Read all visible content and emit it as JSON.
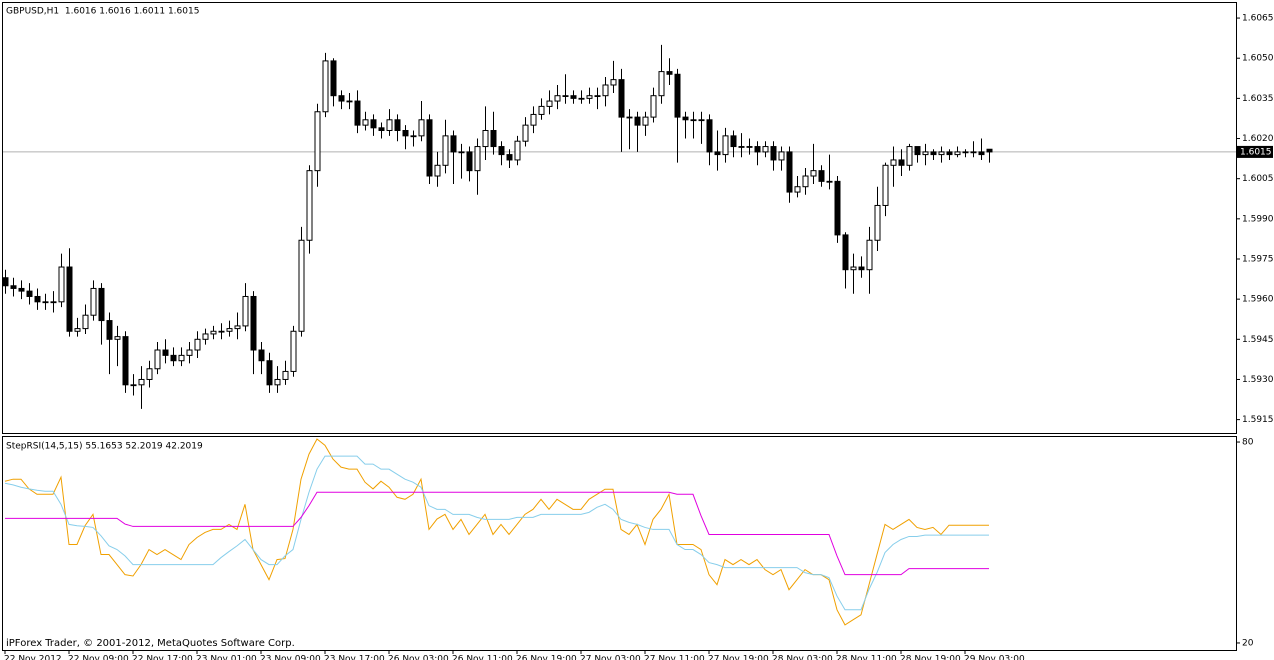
{
  "chart_data": [
    {
      "type": "candlestick",
      "title": "GBPUSD,H1  1.6016 1.6016 1.6011 1.6015",
      "categories": [
        "22 Nov 2012",
        null,
        null,
        null,
        null,
        null,
        null,
        null,
        "22 Nov 09:00",
        null,
        null,
        null,
        null,
        null,
        null,
        null,
        "22 Nov 17:00",
        null,
        null,
        null,
        null,
        null,
        null,
        null,
        "23 Nov 01:00",
        null,
        null,
        null,
        null,
        null,
        null,
        null,
        "23 Nov 09:00",
        null,
        null,
        null,
        null,
        null,
        null,
        null,
        "23 Nov 17:00",
        null,
        null,
        null,
        null,
        null,
        null,
        null,
        "26 Nov 03:00",
        null,
        null,
        null,
        null,
        null,
        null,
        null,
        "26 Nov 11:00",
        null,
        null,
        null,
        null,
        null,
        null,
        null,
        "26 Nov 19:00",
        null,
        null,
        null,
        null,
        null,
        null,
        null,
        "27 Nov 03:00",
        null,
        null,
        null,
        null,
        null,
        null,
        null,
        "27 Nov 11:00",
        null,
        null,
        null,
        null,
        null,
        null,
        null,
        "27 Nov 19:00",
        null,
        null,
        null,
        null,
        null,
        null,
        null,
        "28 Nov 03:00",
        null,
        null,
        null,
        null,
        null,
        null,
        null,
        "28 Nov 11:00",
        null,
        null,
        null,
        null,
        null,
        null,
        null,
        "28 Nov 19:00",
        null,
        null,
        null,
        null,
        null,
        null,
        null,
        "29 Nov 03:00",
        null,
        null,
        null
      ],
      "open": [
        1.5968,
        1.5965,
        1.5964,
        1.5963,
        1.5961,
        1.5959,
        1.5959,
        1.5959,
        1.5972,
        1.5948,
        1.5949,
        1.5954,
        1.5964,
        1.5952,
        1.5945,
        1.5946,
        1.5928,
        1.5928,
        1.593,
        1.5934,
        1.5941,
        1.5939,
        1.5937,
        1.5939,
        1.5941,
        1.5945,
        1.5947,
        1.5948,
        1.5948,
        1.5949,
        1.595,
        1.5961,
        1.5941,
        1.5937,
        1.5928,
        1.593,
        1.5933,
        1.5948,
        1.5982,
        1.6008,
        1.603,
        1.6049,
        1.6036,
        1.6034,
        1.6034,
        1.6025,
        1.6027,
        1.6024,
        1.6023,
        1.6027,
        1.6023,
        1.6021,
        1.6021,
        1.6027,
        1.6006,
        1.601,
        1.6021,
        1.6015,
        1.6015,
        1.6008,
        1.6017,
        1.6023,
        1.6017,
        1.6014,
        1.6012,
        1.6019,
        1.6025,
        1.6029,
        1.6032,
        1.6034,
        1.6036,
        1.6036,
        1.6035,
        1.6035,
        1.6036,
        1.6036,
        1.604,
        1.6042,
        1.6028,
        1.6028,
        1.6025,
        1.6028,
        1.6036,
        1.6045,
        1.6044,
        1.6028,
        1.6027,
        1.6027,
        1.6027,
        1.6015,
        1.6014,
        1.6021,
        1.6017,
        1.6017,
        1.6017,
        1.6015,
        1.6017,
        1.6012,
        1.6015,
        1.6,
        1.6002,
        1.6006,
        1.6008,
        1.6004,
        1.6004,
        1.5984,
        1.5971,
        1.5972,
        1.5971,
        1.5982,
        1.5995,
        1.601,
        1.6012,
        1.601,
        1.6017,
        1.6014,
        1.6015,
        1.6014,
        1.6015,
        1.6014,
        1.6015,
        1.6015,
        1.6015,
        1.6016
      ],
      "high": [
        1.5971,
        1.5968,
        1.5967,
        1.5966,
        1.5964,
        1.5962,
        1.5963,
        1.5977,
        1.5979,
        1.5953,
        1.5958,
        1.5967,
        1.5966,
        1.5955,
        1.595,
        1.5948,
        1.5932,
        1.5935,
        1.5937,
        1.5944,
        1.5945,
        1.5942,
        1.5942,
        1.5944,
        1.5948,
        1.5949,
        1.595,
        1.5951,
        1.5952,
        1.5955,
        1.5966,
        1.5963,
        1.5944,
        1.594,
        1.5935,
        1.5937,
        1.595,
        1.5987,
        1.601,
        1.6033,
        1.6052,
        1.605,
        1.6038,
        1.6037,
        1.6038,
        1.603,
        1.6029,
        1.6026,
        1.6031,
        1.6029,
        1.6025,
        1.6023,
        1.6034,
        1.6029,
        1.6015,
        1.6027,
        1.6023,
        1.6018,
        1.6017,
        1.602,
        1.6032,
        1.603,
        1.6019,
        1.6016,
        1.6021,
        1.6028,
        1.6032,
        1.6035,
        1.6038,
        1.604,
        1.6044,
        1.6038,
        1.6038,
        1.6039,
        1.6039,
        1.6043,
        1.6049,
        1.6046,
        1.6031,
        1.603,
        1.603,
        1.6039,
        1.6055,
        1.605,
        1.6046,
        1.603,
        1.603,
        1.603,
        1.6029,
        1.6023,
        1.6024,
        1.6023,
        1.6022,
        1.602,
        1.6019,
        1.6019,
        1.6019,
        1.6017,
        1.6017,
        1.6006,
        1.6009,
        1.6018,
        1.601,
        1.6014,
        1.6006,
        1.5985,
        1.5977,
        1.5976,
        1.5987,
        1.6002,
        1.6011,
        1.6017,
        1.6016,
        1.6018,
        1.6017,
        1.6018,
        1.6016,
        1.6017,
        1.6016,
        1.6017,
        1.6016,
        1.6019,
        1.602,
        1.6016
      ],
      "low": [
        1.5962,
        1.5961,
        1.596,
        1.5958,
        1.5956,
        1.5956,
        1.5955,
        1.5957,
        1.5946,
        1.5946,
        1.5947,
        1.5952,
        1.5943,
        1.5932,
        1.5935,
        1.5925,
        1.5924,
        1.5919,
        1.5927,
        1.5932,
        1.5936,
        1.5935,
        1.5935,
        1.5936,
        1.5938,
        1.5943,
        1.5945,
        1.5945,
        1.5946,
        1.5945,
        1.5948,
        1.5932,
        1.5932,
        1.5925,
        1.5925,
        1.5928,
        1.5931,
        1.5946,
        1.5977,
        1.6002,
        1.6028,
        1.6032,
        1.6031,
        1.6031,
        1.6022,
        1.6023,
        1.6021,
        1.602,
        1.6021,
        1.6019,
        1.6016,
        1.6017,
        1.6019,
        1.6003,
        1.6002,
        1.6007,
        1.6003,
        1.6005,
        1.6004,
        1.5999,
        1.6012,
        1.6014,
        1.601,
        1.6009,
        1.601,
        1.6017,
        1.6022,
        1.6027,
        1.6029,
        1.6031,
        1.6033,
        1.6033,
        1.6033,
        1.6033,
        1.6031,
        1.6032,
        1.6037,
        1.6015,
        1.6016,
        1.6015,
        1.6021,
        1.6026,
        1.6033,
        1.604,
        1.6011,
        1.602,
        1.602,
        1.6018,
        1.601,
        1.6008,
        1.6011,
        1.6013,
        1.6013,
        1.6014,
        1.601,
        1.6013,
        1.6008,
        1.6008,
        1.5996,
        1.5998,
        1.5999,
        1.6003,
        1.6002,
        1.6001,
        1.5981,
        1.5964,
        1.5962,
        1.5968,
        1.5962,
        1.5978,
        1.5991,
        1.6002,
        1.6006,
        1.6008,
        1.6011,
        1.601,
        1.6012,
        1.6011,
        1.6012,
        1.6013,
        1.6013,
        1.6013,
        1.6012,
        1.6011
      ],
      "close": [
        1.5965,
        1.5964,
        1.5963,
        1.5961,
        1.5959,
        1.5959,
        1.5959,
        1.5972,
        1.5948,
        1.5949,
        1.5954,
        1.5964,
        1.5952,
        1.5945,
        1.5946,
        1.5928,
        1.5928,
        1.593,
        1.5934,
        1.5941,
        1.5939,
        1.5937,
        1.5939,
        1.5941,
        1.5945,
        1.5947,
        1.5948,
        1.5948,
        1.5949,
        1.595,
        1.5961,
        1.5941,
        1.5937,
        1.5928,
        1.593,
        1.5933,
        1.5948,
        1.5982,
        1.6008,
        1.603,
        1.6049,
        1.6036,
        1.6034,
        1.6034,
        1.6025,
        1.6027,
        1.6024,
        1.6023,
        1.6027,
        1.6023,
        1.6021,
        1.6021,
        1.6027,
        1.6006,
        1.601,
        1.6021,
        1.6015,
        1.6015,
        1.6008,
        1.6017,
        1.6023,
        1.6017,
        1.6014,
        1.6012,
        1.6019,
        1.6025,
        1.6029,
        1.6032,
        1.6034,
        1.6036,
        1.6036,
        1.6035,
        1.6035,
        1.6036,
        1.6036,
        1.604,
        1.6042,
        1.6028,
        1.6028,
        1.6025,
        1.6028,
        1.6036,
        1.6045,
        1.6044,
        1.6028,
        1.6027,
        1.6027,
        1.6027,
        1.6015,
        1.6014,
        1.6021,
        1.6017,
        1.6017,
        1.6017,
        1.6015,
        1.6017,
        1.6012,
        1.6015,
        1.6,
        1.6002,
        1.6006,
        1.6008,
        1.6004,
        1.6004,
        1.5984,
        1.5971,
        1.5972,
        1.5971,
        1.5982,
        1.5995,
        1.601,
        1.6012,
        1.601,
        1.6017,
        1.6014,
        1.6015,
        1.6014,
        1.6015,
        1.6014,
        1.6015,
        1.6015,
        1.6015,
        1.6014,
        1.6015
      ],
      "up_color": "#ffffff",
      "down_color": "#000000",
      "current_price": 1.6015,
      "ylim": [
        1.591,
        1.6071
      ],
      "yticks": [
        1.6065,
        {
          "value": 1.605,
          "label": "1.6050"
        },
        1.6035,
        {
          "value": 1.602,
          "label": "1.6020"
        },
        1.6005,
        {
          "value": 1.599,
          "label": "1.5990"
        },
        1.5975,
        {
          "value": 1.596,
          "label": "1.5960"
        },
        1.5945,
        {
          "value": 1.593,
          "label": "1.5930"
        },
        1.5915
      ]
    },
    {
      "type": "line",
      "title": "StepRSI(14,5,15) 55.1653 52.2019 42.2019",
      "series": [
        {
          "color": "#f0a000",
          "values": [
            68.3,
            68.9,
            68.9,
            66.0,
            64.4,
            64.4,
            64.4,
            69.5,
            49.4,
            49.4,
            55.0,
            58.4,
            46.4,
            46.4,
            43.4,
            40.4,
            40.0,
            43.4,
            47.9,
            46.4,
            47.9,
            46.4,
            44.9,
            49.4,
            51.5,
            53.0,
            53.9,
            53.9,
            55.4,
            53.9,
            61.4,
            47.9,
            43.4,
            38.9,
            44.9,
            45.2,
            53.9,
            68.9,
            76.4,
            80.9,
            79.0,
            74.9,
            72.5,
            71.9,
            71.9,
            68.0,
            66.0,
            68.3,
            66.5,
            63.5,
            62.9,
            64.4,
            68.9,
            53.9,
            57.0,
            58.4,
            53.9,
            56.9,
            52.4,
            55.4,
            58.4,
            52.4,
            55.4,
            52.4,
            55.4,
            58.4,
            59.9,
            62.9,
            59.9,
            62.9,
            61.4,
            59.9,
            59.9,
            62.9,
            64.4,
            65.9,
            65.9,
            53.9,
            52.4,
            55.4,
            49.4,
            56.9,
            59.9,
            64.4,
            49.4,
            49.4,
            49.4,
            47.9,
            40.4,
            37.4,
            44.9,
            43.4,
            44.9,
            43.4,
            44.9,
            41.9,
            40.4,
            41.9,
            35.9,
            38.9,
            41.9,
            40.4,
            40.4,
            38.9,
            29.9,
            25.4,
            26.9,
            28.4,
            37.4,
            46.4,
            55.4,
            53.9,
            55.4,
            56.9,
            54.5,
            53.9,
            54.5,
            52.4,
            55.1653,
            55.1653,
            55.1653,
            55.1653,
            55.1653,
            55.1653
          ]
        },
        {
          "color": "#87ceeb",
          "values": [
            67.7,
            67.2,
            66.5,
            66.0,
            65.6,
            65.3,
            65.3,
            61.4,
            55.4,
            55.0,
            54.8,
            54.5,
            52.0,
            49.0,
            47.9,
            46.0,
            43.4,
            43.4,
            43.4,
            43.4,
            43.4,
            43.4,
            43.4,
            43.4,
            43.4,
            43.4,
            43.4,
            45.5,
            47.3,
            49.0,
            50.9,
            47.9,
            44.9,
            43.4,
            43.4,
            46.0,
            47.9,
            56.9,
            65.0,
            71.9,
            75.8,
            75.8,
            75.8,
            75.8,
            75.8,
            73.4,
            73.4,
            71.9,
            71.9,
            70.4,
            68.9,
            68.0,
            66.5,
            61.0,
            59.9,
            59.9,
            58.4,
            58.4,
            58.4,
            57.5,
            56.9,
            56.9,
            56.9,
            56.9,
            57.5,
            57.5,
            57.5,
            58.4,
            58.4,
            58.4,
            58.4,
            58.4,
            58.4,
            59.0,
            60.5,
            61.4,
            59.9,
            56.9,
            56.0,
            55.4,
            54.5,
            53.9,
            53.9,
            53.9,
            49.4,
            47.9,
            47.9,
            46.4,
            44.0,
            43.4,
            42.5,
            42.5,
            42.5,
            42.5,
            42.5,
            42.5,
            42.5,
            42.5,
            42.5,
            42.5,
            41.0,
            40.4,
            40.4,
            39.5,
            34.0,
            29.9,
            29.9,
            29.9,
            36.0,
            41.0,
            47.0,
            49.4,
            50.9,
            51.8,
            51.8,
            52.2019,
            52.2019,
            52.2019,
            52.2019,
            52.2019,
            52.2019,
            52.2019,
            52.2019,
            52.2019
          ]
        },
        {
          "color": "#e000e0",
          "values": [
            57.2,
            57.2,
            57.2,
            57.2,
            57.2,
            57.2,
            57.2,
            57.2,
            57.2,
            57.2,
            57.2,
            57.2,
            57.2,
            57.2,
            57.2,
            55.5,
            54.8,
            54.8,
            54.8,
            54.8,
            54.8,
            54.8,
            54.8,
            54.8,
            54.8,
            54.8,
            54.8,
            54.8,
            54.8,
            54.8,
            54.8,
            54.8,
            54.8,
            54.8,
            54.8,
            54.8,
            54.8,
            57.5,
            61.0,
            65.0,
            65.0,
            65.0,
            65.0,
            65.0,
            65.0,
            65.0,
            65.0,
            65.0,
            65.0,
            65.0,
            65.0,
            65.0,
            65.0,
            65.0,
            65.0,
            65.0,
            65.0,
            65.0,
            65.0,
            65.0,
            65.0,
            65.0,
            65.0,
            65.0,
            65.0,
            65.0,
            65.0,
            65.0,
            65.0,
            65.0,
            65.0,
            65.0,
            65.0,
            65.0,
            65.0,
            65.0,
            65.0,
            65.0,
            65.0,
            65.0,
            65.0,
            65.0,
            65.0,
            65.0,
            64.4,
            64.4,
            64.4,
            58.0,
            52.4,
            52.4,
            52.4,
            52.4,
            52.4,
            52.4,
            52.4,
            52.4,
            52.4,
            52.4,
            52.4,
            52.4,
            52.4,
            52.4,
            52.4,
            52.4,
            46.0,
            40.4,
            40.4,
            40.4,
            40.4,
            40.4,
            40.4,
            40.4,
            40.4,
            42.2019,
            42.2019,
            42.2019,
            42.2019,
            42.2019,
            42.2019,
            42.2019,
            42.2019,
            42.2019,
            42.2019,
            42.2019
          ]
        }
      ],
      "ylim": [
        17.9,
        81.8
      ],
      "yticks": [
        20,
        80
      ]
    }
  ],
  "footer": "iPForex Trader, © 2001-2012, MetaQuotes Software Corp."
}
